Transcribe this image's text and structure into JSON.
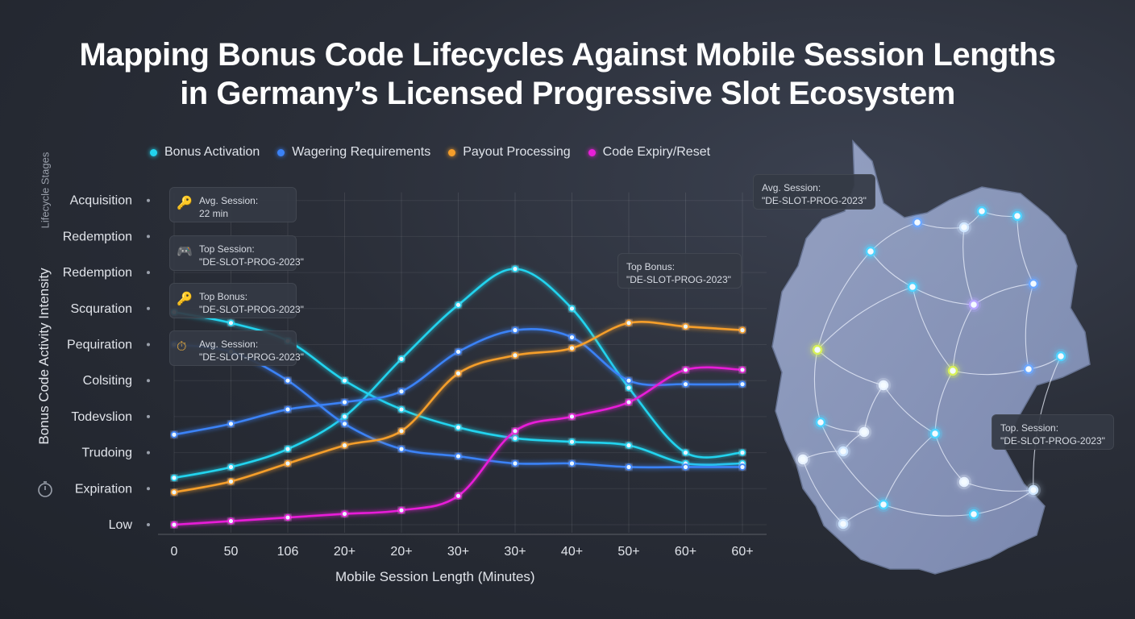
{
  "title": {
    "line1": "Mapping Bonus Code Lifecycles Against Mobile Session Lengths",
    "line2": "in Germany’s Licensed Progressive Slot Ecosystem"
  },
  "legend": [
    {
      "label": "Bonus Activation",
      "color": "#22d3ee"
    },
    {
      "label": "Wagering Requirements",
      "color": "#3b82f6"
    },
    {
      "label": "Payout Processing",
      "color": "#f59e2a"
    },
    {
      "label": "Code Expiry/Reset",
      "color": "#e81fd8"
    }
  ],
  "y_axis_title": "Bonus Code Activity Intensity",
  "lifecycle_label": "Lifecycle Stages",
  "x_axis_title": "Mobile Session Length (Minutes)",
  "callouts": [
    {
      "icon": "key-icon",
      "line1": "Avg. Session:",
      "line2": "22 min"
    },
    {
      "icon": "gamepad-icon",
      "line1": "Top Session:",
      "line2": "\"DE-SLOT-PROG-2023\""
    },
    {
      "icon": "key-icon",
      "line1": "Top Bonus:",
      "line2": "\"DE-SLOT-PROG-2023\""
    },
    {
      "icon": "stopwatch-icon",
      "line1": "Avg. Session:",
      "line2": "\"DE-SLOT-PROG-2023\""
    },
    {
      "line1": "Top Bonus:",
      "line2": "\"DE-SLOT-PROG-2023\""
    }
  ],
  "map_callouts": [
    {
      "line1": "Avg. Session:",
      "line2": "\"DE-SLOT-PROG-2023\""
    },
    {
      "line1": "Top. Session:",
      "line2": "\"DE-SLOT-PROG-2023\""
    }
  ],
  "chart_data": {
    "type": "line",
    "title": "Mapping Bonus Code Lifecycles Against Mobile Session Lengths in Germany’s Licensed Progressive Slot Ecosystem",
    "xlabel": "Mobile Session Length (Minutes)",
    "ylabel": "Bonus Code Activity Intensity",
    "categories": [
      "0",
      "50",
      "106",
      "20+",
      "20+",
      "30+",
      "30+",
      "40+",
      "50+",
      "60+",
      "60+"
    ],
    "y_categories": [
      "Low",
      "Expiration",
      "Trudoing",
      "Todevslion",
      "Colsiting",
      "Pequiration",
      "Scquration",
      "Redemption",
      "Redemption",
      "Acquisition"
    ],
    "grid": true,
    "legend_position": "top",
    "series": [
      {
        "name": "Bonus Activation",
        "color": "#22d3ee",
        "values": [
          5.9,
          5.6,
          5.1,
          4.0,
          3.2,
          2.7,
          2.4,
          2.3,
          2.2,
          1.7,
          1.7
        ]
      },
      {
        "name": "Bonus Activation",
        "color": "#22d3ee",
        "values": [
          1.3,
          1.6,
          2.1,
          3.0,
          4.6,
          6.1,
          7.1,
          6.0,
          3.8,
          2.0,
          2.0
        ]
      },
      {
        "name": "Wagering Requirements",
        "color": "#3b82f6",
        "values": [
          2.5,
          2.8,
          3.2,
          3.4,
          3.7,
          4.8,
          5.4,
          5.2,
          4.0,
          3.9,
          3.9
        ]
      },
      {
        "name": "Wagering Requirements",
        "color": "#3b82f6",
        "values": [
          5.0,
          4.8,
          4.0,
          2.8,
          2.1,
          1.9,
          1.7,
          1.7,
          1.6,
          1.6,
          1.6
        ]
      },
      {
        "name": "Payout Processing",
        "color": "#f59e2a",
        "values": [
          0.9,
          1.2,
          1.7,
          2.2,
          2.6,
          4.2,
          4.7,
          4.9,
          5.6,
          5.5,
          5.4
        ]
      },
      {
        "name": "Code Expiry/Reset",
        "color": "#e81fd8",
        "values": [
          0.0,
          0.1,
          0.2,
          0.3,
          0.4,
          0.8,
          2.6,
          3.0,
          3.4,
          4.3,
          4.3
        ]
      }
    ]
  },
  "map": {
    "label": "Germany"
  }
}
